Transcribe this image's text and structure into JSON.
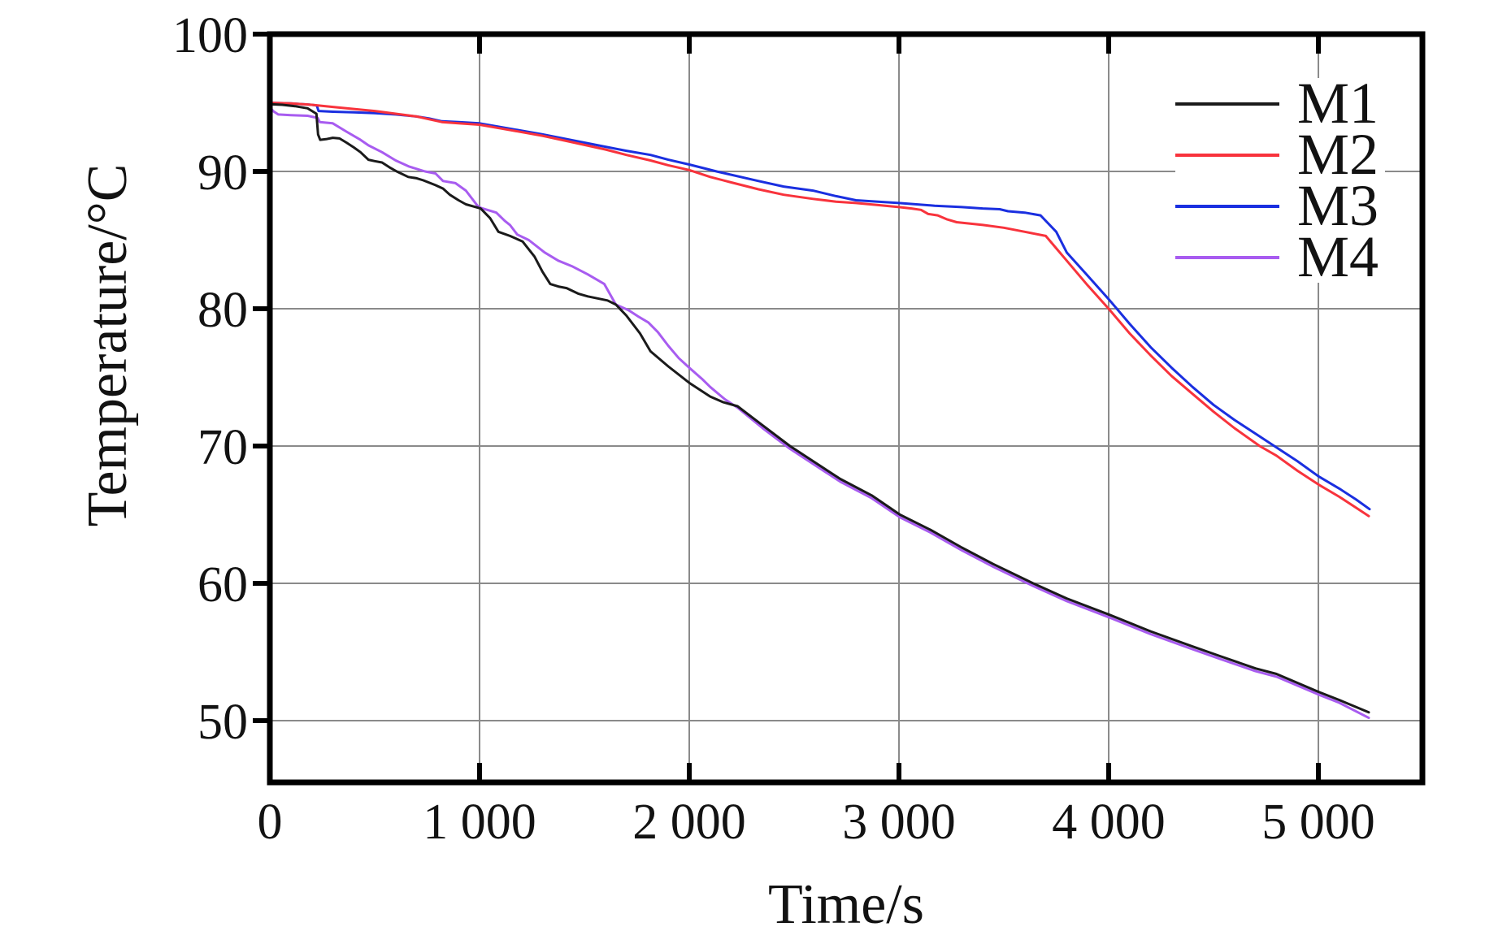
{
  "figure": {
    "xlabel": "Time/s",
    "ylabel": "Temperature/°C"
  },
  "legend": {
    "position": "top-right",
    "entries": [
      {
        "label": "M1",
        "color": "#1a1a1a"
      },
      {
        "label": "M2",
        "color": "#f8333c"
      },
      {
        "label": "M3",
        "color": "#1a2fe0"
      },
      {
        "label": "M4",
        "color": "#a85cf0"
      }
    ]
  },
  "chart_data": {
    "type": "line",
    "title": "",
    "xlabel": "Time/s",
    "ylabel": "Temperature/°C",
    "x_range": [
      0,
      5496
    ],
    "y_range": [
      45.5,
      100
    ],
    "grid": true,
    "grid_color": "#8a8a8a",
    "frame_color": "#000000",
    "legend_position": "top-right",
    "x_ticks": [
      {
        "value": 0,
        "label": "0"
      },
      {
        "value": 1000,
        "label": "1 000"
      },
      {
        "value": 2000,
        "label": "2 000"
      },
      {
        "value": 3000,
        "label": "3 000"
      },
      {
        "value": 4000,
        "label": "4 000"
      },
      {
        "value": 5000,
        "label": "5 000"
      }
    ],
    "y_ticks": [
      {
        "value": 50,
        "label": "50"
      },
      {
        "value": 60,
        "label": "60"
      },
      {
        "value": 70,
        "label": "70"
      },
      {
        "value": 80,
        "label": "80"
      },
      {
        "value": 90,
        "label": "90"
      },
      {
        "value": 100,
        "label": "100"
      }
    ],
    "series": [
      {
        "name": "M4",
        "color": "#a85cf0",
        "points": [
          [
            0,
            94.7
          ],
          [
            15,
            94.4
          ],
          [
            40,
            94.15
          ],
          [
            100,
            94.1
          ],
          [
            180,
            94.05
          ],
          [
            228,
            93.9
          ],
          [
            238,
            93.6
          ],
          [
            300,
            93.5
          ],
          [
            365,
            92.9
          ],
          [
            432,
            92.3
          ],
          [
            470,
            91.9
          ],
          [
            535,
            91.4
          ],
          [
            600,
            90.8
          ],
          [
            665,
            90.35
          ],
          [
            740,
            90.0
          ],
          [
            790,
            89.85
          ],
          [
            826,
            89.3
          ],
          [
            885,
            89.15
          ],
          [
            935,
            88.6
          ],
          [
            990,
            87.5
          ],
          [
            1005,
            87.35
          ],
          [
            1080,
            87.0
          ],
          [
            1120,
            86.4
          ],
          [
            1145,
            86.1
          ],
          [
            1180,
            85.4
          ],
          [
            1235,
            85.0
          ],
          [
            1310,
            84.1
          ],
          [
            1375,
            83.5
          ],
          [
            1440,
            83.1
          ],
          [
            1516,
            82.5
          ],
          [
            1595,
            81.8
          ],
          [
            1650,
            80.3
          ],
          [
            1710,
            79.9
          ],
          [
            1760,
            79.4
          ],
          [
            1805,
            79.0
          ],
          [
            1850,
            78.3
          ],
          [
            1900,
            77.3
          ],
          [
            1950,
            76.4
          ],
          [
            2000,
            75.7
          ],
          [
            2060,
            74.9
          ],
          [
            2100,
            74.3
          ],
          [
            2170,
            73.4
          ],
          [
            2230,
            72.8
          ],
          [
            2350,
            71.3
          ],
          [
            2480,
            69.8
          ],
          [
            2600,
            68.6
          ],
          [
            2720,
            67.4
          ],
          [
            2870,
            66.2
          ],
          [
            3005,
            64.8
          ],
          [
            3150,
            63.7
          ],
          [
            3300,
            62.4
          ],
          [
            3450,
            61.2
          ],
          [
            3640,
            59.8
          ],
          [
            3800,
            58.7
          ],
          [
            4005,
            57.5
          ],
          [
            4200,
            56.3
          ],
          [
            4400,
            55.2
          ],
          [
            4530,
            54.5
          ],
          [
            4700,
            53.6
          ],
          [
            4800,
            53.2
          ],
          [
            5000,
            51.9
          ],
          [
            5100,
            51.3
          ],
          [
            5240,
            50.2
          ]
        ]
      },
      {
        "name": "M3",
        "color": "#1a2fe0",
        "points": [
          [
            0,
            95.0
          ],
          [
            100,
            94.95
          ],
          [
            200,
            94.85
          ],
          [
            224,
            94.8
          ],
          [
            232,
            94.4
          ],
          [
            300,
            94.35
          ],
          [
            400,
            94.3
          ],
          [
            500,
            94.25
          ],
          [
            600,
            94.15
          ],
          [
            700,
            94.0
          ],
          [
            760,
            93.85
          ],
          [
            820,
            93.65
          ],
          [
            900,
            93.6
          ],
          [
            1000,
            93.5
          ],
          [
            1150,
            93.1
          ],
          [
            1300,
            92.7
          ],
          [
            1450,
            92.25
          ],
          [
            1600,
            91.8
          ],
          [
            1700,
            91.5
          ],
          [
            1815,
            91.2
          ],
          [
            1900,
            90.85
          ],
          [
            2000,
            90.5
          ],
          [
            2130,
            90.0
          ],
          [
            2330,
            89.3
          ],
          [
            2450,
            88.9
          ],
          [
            2590,
            88.6
          ],
          [
            2700,
            88.2
          ],
          [
            2795,
            87.9
          ],
          [
            2900,
            87.8
          ],
          [
            3000,
            87.7
          ],
          [
            3170,
            87.5
          ],
          [
            3300,
            87.4
          ],
          [
            3400,
            87.3
          ],
          [
            3480,
            87.25
          ],
          [
            3520,
            87.1
          ],
          [
            3600,
            87.0
          ],
          [
            3675,
            86.8
          ],
          [
            3750,
            85.6
          ],
          [
            3800,
            84.1
          ],
          [
            3900,
            82.4
          ],
          [
            4000,
            80.7
          ],
          [
            4100,
            78.9
          ],
          [
            4200,
            77.2
          ],
          [
            4300,
            75.7
          ],
          [
            4400,
            74.3
          ],
          [
            4500,
            73.0
          ],
          [
            4600,
            71.9
          ],
          [
            4700,
            70.9
          ],
          [
            4790,
            70.0
          ],
          [
            4900,
            68.9
          ],
          [
            5000,
            67.8
          ],
          [
            5100,
            66.9
          ],
          [
            5180,
            66.1
          ],
          [
            5244,
            65.4
          ]
        ]
      },
      {
        "name": "M2",
        "color": "#f8333c",
        "points": [
          [
            0,
            95.0
          ],
          [
            100,
            94.95
          ],
          [
            200,
            94.85
          ],
          [
            300,
            94.7
          ],
          [
            400,
            94.55
          ],
          [
            500,
            94.4
          ],
          [
            600,
            94.2
          ],
          [
            700,
            94.0
          ],
          [
            760,
            93.8
          ],
          [
            820,
            93.6
          ],
          [
            900,
            93.5
          ],
          [
            1000,
            93.4
          ],
          [
            1150,
            93.0
          ],
          [
            1300,
            92.6
          ],
          [
            1450,
            92.1
          ],
          [
            1600,
            91.6
          ],
          [
            1700,
            91.2
          ],
          [
            1815,
            90.8
          ],
          [
            1900,
            90.45
          ],
          [
            2000,
            90.1
          ],
          [
            2100,
            89.6
          ],
          [
            2200,
            89.2
          ],
          [
            2330,
            88.7
          ],
          [
            2450,
            88.3
          ],
          [
            2590,
            88.0
          ],
          [
            2700,
            87.8
          ],
          [
            2795,
            87.7
          ],
          [
            2900,
            87.55
          ],
          [
            3000,
            87.4
          ],
          [
            3060,
            87.3
          ],
          [
            3105,
            87.2
          ],
          [
            3140,
            86.9
          ],
          [
            3185,
            86.8
          ],
          [
            3230,
            86.5
          ],
          [
            3275,
            86.3
          ],
          [
            3400,
            86.1
          ],
          [
            3500,
            85.9
          ],
          [
            3600,
            85.6
          ],
          [
            3700,
            85.3
          ],
          [
            3750,
            84.4
          ],
          [
            3800,
            83.5
          ],
          [
            3900,
            81.7
          ],
          [
            4000,
            80.0
          ],
          [
            4100,
            78.2
          ],
          [
            4200,
            76.6
          ],
          [
            4300,
            75.1
          ],
          [
            4400,
            73.8
          ],
          [
            4500,
            72.5
          ],
          [
            4600,
            71.3
          ],
          [
            4720,
            70.0
          ],
          [
            4800,
            69.3
          ],
          [
            4900,
            68.2
          ],
          [
            5000,
            67.2
          ],
          [
            5100,
            66.3
          ],
          [
            5180,
            65.5
          ],
          [
            5240,
            64.9
          ]
        ]
      },
      {
        "name": "M1",
        "color": "#1a1a1a",
        "points": [
          [
            0,
            94.9
          ],
          [
            60,
            94.85
          ],
          [
            120,
            94.75
          ],
          [
            180,
            94.6
          ],
          [
            222,
            94.2
          ],
          [
            230,
            92.7
          ],
          [
            240,
            92.3
          ],
          [
            268,
            92.35
          ],
          [
            300,
            92.45
          ],
          [
            332,
            92.4
          ],
          [
            365,
            92.1
          ],
          [
            400,
            91.75
          ],
          [
            432,
            91.4
          ],
          [
            470,
            90.85
          ],
          [
            500,
            90.75
          ],
          [
            535,
            90.65
          ],
          [
            570,
            90.3
          ],
          [
            605,
            90.0
          ],
          [
            660,
            89.6
          ],
          [
            700,
            89.5
          ],
          [
            732,
            89.35
          ],
          [
            790,
            89.0
          ],
          [
            826,
            88.75
          ],
          [
            858,
            88.3
          ],
          [
            900,
            87.9
          ],
          [
            935,
            87.6
          ],
          [
            1005,
            87.3
          ],
          [
            1050,
            86.6
          ],
          [
            1090,
            85.6
          ],
          [
            1145,
            85.3
          ],
          [
            1205,
            84.9
          ],
          [
            1262,
            83.8
          ],
          [
            1300,
            82.7
          ],
          [
            1337,
            81.8
          ],
          [
            1380,
            81.6
          ],
          [
            1415,
            81.5
          ],
          [
            1470,
            81.1
          ],
          [
            1516,
            80.9
          ],
          [
            1610,
            80.6
          ],
          [
            1650,
            80.3
          ],
          [
            1700,
            79.5
          ],
          [
            1765,
            78.2
          ],
          [
            1815,
            76.9
          ],
          [
            1900,
            75.8
          ],
          [
            2000,
            74.6
          ],
          [
            2100,
            73.6
          ],
          [
            2160,
            73.2
          ],
          [
            2230,
            72.9
          ],
          [
            2350,
            71.5
          ],
          [
            2480,
            70.0
          ],
          [
            2600,
            68.8
          ],
          [
            2720,
            67.6
          ],
          [
            2870,
            66.4
          ],
          [
            3005,
            65.0
          ],
          [
            3150,
            63.9
          ],
          [
            3300,
            62.6
          ],
          [
            3450,
            61.4
          ],
          [
            3640,
            60.0
          ],
          [
            3800,
            58.9
          ],
          [
            4005,
            57.7
          ],
          [
            4200,
            56.5
          ],
          [
            4400,
            55.4
          ],
          [
            4530,
            54.7
          ],
          [
            4700,
            53.8
          ],
          [
            4800,
            53.4
          ],
          [
            5000,
            52.1
          ],
          [
            5100,
            51.5
          ],
          [
            5240,
            50.6
          ]
        ]
      }
    ]
  }
}
